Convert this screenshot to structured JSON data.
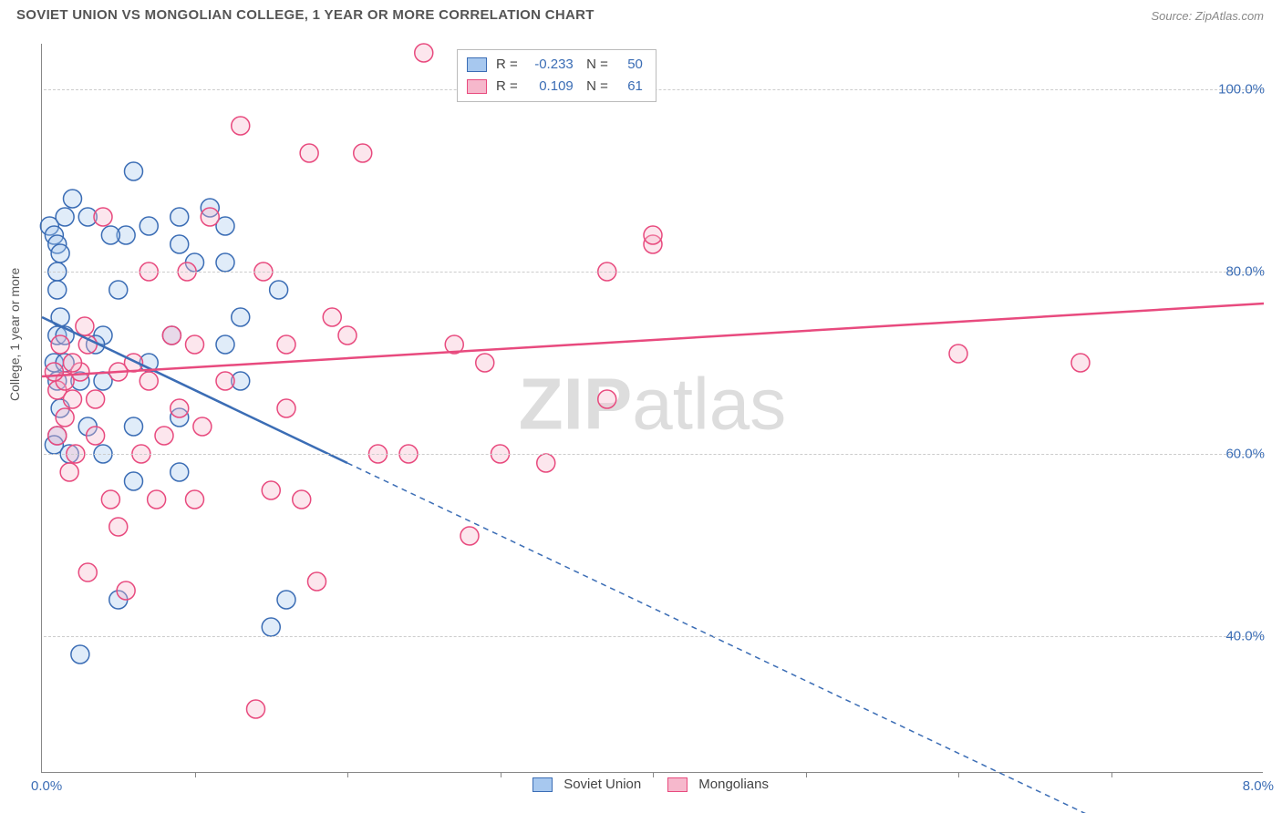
{
  "title": "SOVIET UNION VS MONGOLIAN COLLEGE, 1 YEAR OR MORE CORRELATION CHART",
  "source": "Source: ZipAtlas.com",
  "ylabel": "College, 1 year or more",
  "watermark_bold": "ZIP",
  "watermark_rest": "atlas",
  "chart": {
    "type": "scatter",
    "xlim": [
      0,
      8
    ],
    "ylim": [
      25,
      105
    ],
    "xtick_labels": {
      "min": "0.0%",
      "max": "8.0%"
    },
    "xtick_positions": [
      1,
      2,
      3,
      4,
      5,
      6,
      7
    ],
    "ytick_positions": [
      40,
      60,
      80,
      100
    ],
    "ytick_labels": [
      "40.0%",
      "60.0%",
      "80.0%",
      "100.0%"
    ],
    "grid_color": "#cccccc",
    "axis_color": "#888888",
    "background_color": "#ffffff",
    "marker_radius": 10,
    "marker_stroke_width": 1.5,
    "marker_fill_opacity": 0.35,
    "line_width_solid": 2.5,
    "line_width_dash": 1.5,
    "series": [
      {
        "name": "Soviet Union",
        "color_stroke": "#3b6db5",
        "color_fill": "#a7c8ef",
        "R": "-0.233",
        "N": "50",
        "trend": {
          "x1": 0.0,
          "y1": 75.0,
          "x2_solid": 2.0,
          "y2_solid": 59.0,
          "x2_dash": 6.9,
          "y2_dash": 20.0
        },
        "points": [
          [
            0.05,
            85
          ],
          [
            0.08,
            84
          ],
          [
            0.1,
            83
          ],
          [
            0.12,
            82
          ],
          [
            0.15,
            86
          ],
          [
            0.1,
            80
          ],
          [
            0.1,
            78
          ],
          [
            0.12,
            75
          ],
          [
            0.1,
            73
          ],
          [
            0.15,
            73
          ],
          [
            0.08,
            70
          ],
          [
            0.1,
            68
          ],
          [
            0.15,
            70
          ],
          [
            0.12,
            65
          ],
          [
            0.1,
            62
          ],
          [
            0.08,
            61
          ],
          [
            0.2,
            88
          ],
          [
            0.4,
            73
          ],
          [
            0.5,
            78
          ],
          [
            0.4,
            68
          ],
          [
            0.6,
            91
          ],
          [
            0.55,
            84
          ],
          [
            0.7,
            85
          ],
          [
            0.6,
            63
          ],
          [
            0.6,
            57
          ],
          [
            0.5,
            44
          ],
          [
            0.25,
            38
          ],
          [
            0.9,
            86
          ],
          [
            0.9,
            83
          ],
          [
            1.0,
            81
          ],
          [
            0.9,
            64
          ],
          [
            0.9,
            58
          ],
          [
            1.2,
            85
          ],
          [
            1.2,
            81
          ],
          [
            1.1,
            87
          ],
          [
            1.2,
            72
          ],
          [
            1.3,
            75
          ],
          [
            1.3,
            68
          ],
          [
            1.5,
            41
          ],
          [
            1.6,
            44
          ],
          [
            1.55,
            78
          ],
          [
            0.3,
            86
          ],
          [
            0.35,
            72
          ],
          [
            0.3,
            63
          ],
          [
            0.4,
            60
          ],
          [
            0.45,
            84
          ],
          [
            0.7,
            70
          ],
          [
            0.85,
            73
          ],
          [
            0.18,
            60
          ],
          [
            0.25,
            68
          ]
        ]
      },
      {
        "name": "Mongolians",
        "color_stroke": "#e84a7e",
        "color_fill": "#f6b8cc",
        "R": "0.109",
        "N": "61",
        "trend": {
          "x1": 0.0,
          "y1": 68.5,
          "x2_solid": 8.0,
          "y2_solid": 76.5
        },
        "points": [
          [
            0.1,
            67
          ],
          [
            0.15,
            68
          ],
          [
            0.2,
            66
          ],
          [
            0.25,
            69
          ],
          [
            0.3,
            72
          ],
          [
            0.35,
            62
          ],
          [
            0.4,
            86
          ],
          [
            0.45,
            55
          ],
          [
            0.5,
            52
          ],
          [
            0.15,
            64
          ],
          [
            0.2,
            70
          ],
          [
            0.1,
            62
          ],
          [
            0.6,
            70
          ],
          [
            0.7,
            68
          ],
          [
            0.7,
            80
          ],
          [
            0.8,
            62
          ],
          [
            0.85,
            73
          ],
          [
            0.9,
            65
          ],
          [
            0.95,
            80
          ],
          [
            1.0,
            72
          ],
          [
            1.1,
            86
          ],
          [
            1.2,
            68
          ],
          [
            1.3,
            96
          ],
          [
            1.4,
            32
          ],
          [
            1.5,
            56
          ],
          [
            1.6,
            72
          ],
          [
            1.6,
            65
          ],
          [
            1.7,
            55
          ],
          [
            1.75,
            93
          ],
          [
            1.8,
            46
          ],
          [
            1.9,
            75
          ],
          [
            2.0,
            73
          ],
          [
            2.1,
            93
          ],
          [
            2.2,
            60
          ],
          [
            2.4,
            60
          ],
          [
            2.5,
            104
          ],
          [
            2.7,
            72
          ],
          [
            2.8,
            51
          ],
          [
            2.9,
            70
          ],
          [
            3.0,
            60
          ],
          [
            3.3,
            59
          ],
          [
            3.7,
            80
          ],
          [
            3.7,
            66
          ],
          [
            4.0,
            83
          ],
          [
            4.0,
            84
          ],
          [
            6.0,
            71
          ],
          [
            6.8,
            70
          ],
          [
            0.18,
            58
          ],
          [
            0.22,
            60
          ],
          [
            0.28,
            74
          ],
          [
            0.5,
            69
          ],
          [
            0.55,
            45
          ],
          [
            0.3,
            47
          ],
          [
            0.12,
            72
          ],
          [
            0.08,
            69
          ],
          [
            0.35,
            66
          ],
          [
            1.05,
            63
          ],
          [
            1.45,
            80
          ],
          [
            1.0,
            55
          ],
          [
            0.75,
            55
          ],
          [
            0.65,
            60
          ]
        ]
      }
    ]
  },
  "legend_bottom": [
    {
      "label": "Soviet Union",
      "fill": "#a7c8ef",
      "stroke": "#3b6db5"
    },
    {
      "label": "Mongolians",
      "fill": "#f6b8cc",
      "stroke": "#e84a7e"
    }
  ]
}
